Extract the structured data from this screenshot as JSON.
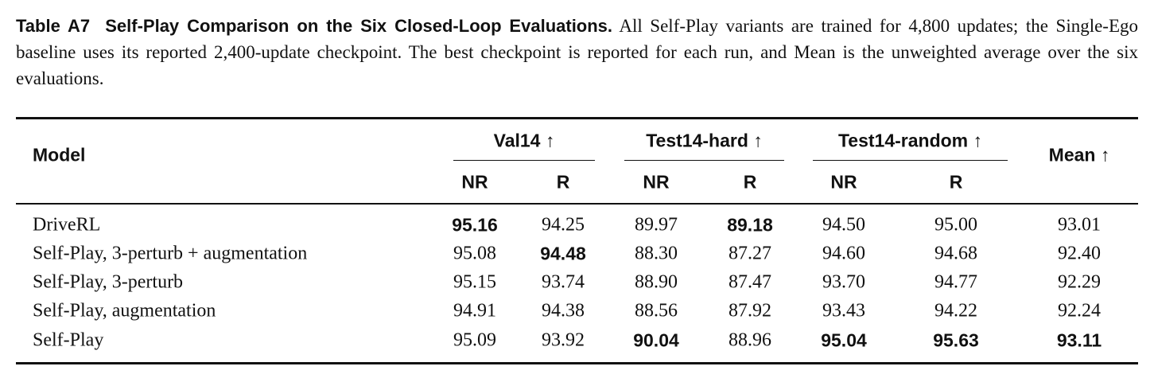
{
  "caption": {
    "label": "Table A7",
    "title": "Self-Play Comparison on the Six Closed-Loop Evaluations.",
    "text": "All Self-Play variants are trained for 4,800 updates; the Single-Ego baseline uses its reported 2,400-update checkpoint. The best checkpoint is reported for each run, and Mean is the unweighted average over the six evaluations."
  },
  "table": {
    "model_header": "Model",
    "groups": [
      "Val14 ↑",
      "Test14-hard ↑",
      "Test14-random ↑"
    ],
    "mean_header": "Mean ↑",
    "subheaders": [
      "NR",
      "R",
      "NR",
      "R",
      "NR",
      "R"
    ],
    "rows": [
      {
        "model": "DriveRL",
        "values": [
          "95.16",
          "94.25",
          "89.97",
          "89.18",
          "94.50",
          "95.00",
          "93.01"
        ],
        "bold": [
          0,
          3
        ]
      },
      {
        "model": "Self-Play, 3-perturb + augmentation",
        "values": [
          "95.08",
          "94.48",
          "88.30",
          "87.27",
          "94.60",
          "94.68",
          "92.40"
        ],
        "bold": [
          1
        ]
      },
      {
        "model": "Self-Play, 3-perturb",
        "values": [
          "95.15",
          "93.74",
          "88.90",
          "87.47",
          "93.70",
          "94.77",
          "92.29"
        ],
        "bold": []
      },
      {
        "model": "Self-Play, augmentation",
        "values": [
          "94.91",
          "94.38",
          "88.56",
          "87.92",
          "93.43",
          "94.22",
          "92.24"
        ],
        "bold": []
      },
      {
        "model": "Self-Play",
        "values": [
          "95.09",
          "93.92",
          "90.04",
          "88.96",
          "95.04",
          "95.63",
          "93.11"
        ],
        "bold": [
          2,
          4,
          5,
          6
        ]
      }
    ]
  }
}
